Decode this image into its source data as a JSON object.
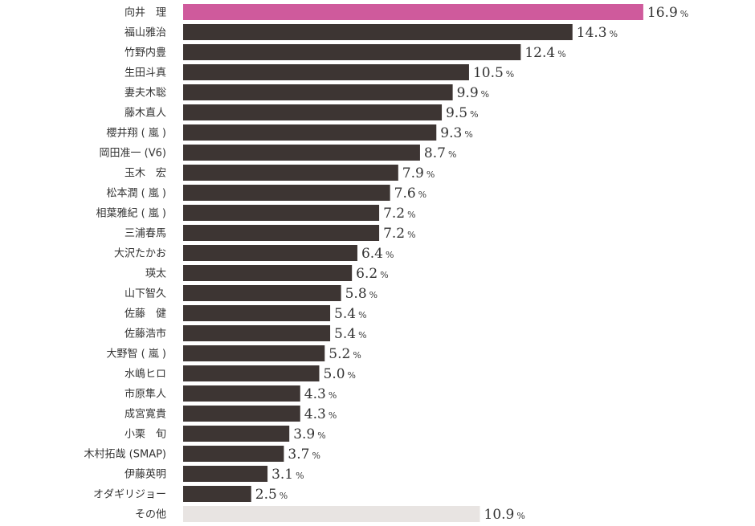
{
  "chart_data": {
    "type": "bar",
    "orientation": "horizontal",
    "title": "",
    "xlabel": "",
    "ylabel": "",
    "unit": "%",
    "xlim": [
      0,
      17.5
    ],
    "grid": false,
    "legend": "none",
    "categories": [
      "向井　理",
      "福山雅治",
      "竹野内豊",
      "生田斗真",
      "妻夫木聡",
      "藤木直人",
      "櫻井翔 ( 嵐 )",
      "岡田准一 (V6)",
      "玉木　宏",
      "松本潤 ( 嵐 )",
      "相葉雅紀 ( 嵐 )",
      "三浦春馬",
      "大沢たかお",
      "瑛太",
      "山下智久",
      "佐藤　健",
      "佐藤浩市",
      "大野智 ( 嵐 )",
      "水嶋ヒロ",
      "市原隼人",
      "成宮寛貴",
      "小栗　旬",
      "木村拓哉 (SMAP)",
      "伊藤英明",
      "オダギリジョー",
      "その他"
    ],
    "values": [
      16.9,
      14.3,
      12.4,
      10.5,
      9.9,
      9.5,
      9.3,
      8.7,
      7.9,
      7.6,
      7.2,
      7.2,
      6.4,
      6.2,
      5.8,
      5.4,
      5.4,
      5.2,
      5.0,
      4.3,
      4.3,
      3.9,
      3.7,
      3.1,
      2.5,
      10.9
    ],
    "value_labels": [
      "16.9",
      "14.3",
      "12.4",
      "10.5",
      "9.9",
      "9.5",
      "9.3",
      "8.7",
      "7.9",
      "7.6",
      "7.2",
      "7.2",
      "6.4",
      "6.2",
      "5.8",
      "5.4",
      "5.4",
      "5.2",
      "5.0",
      "4.3",
      "4.3",
      "3.9",
      "3.7",
      "3.1",
      "2.5",
      "10.9"
    ],
    "bar_colors": [
      "#cf5a9c",
      "#3d3533",
      "#3d3533",
      "#3d3533",
      "#3d3533",
      "#3d3533",
      "#3d3533",
      "#3d3533",
      "#3d3533",
      "#3d3533",
      "#3d3533",
      "#3d3533",
      "#3d3533",
      "#3d3533",
      "#3d3533",
      "#3d3533",
      "#3d3533",
      "#3d3533",
      "#3d3533",
      "#3d3533",
      "#3d3533",
      "#3d3533",
      "#3d3533",
      "#3d3533",
      "#3d3533",
      "#e8e4e2"
    ]
  }
}
